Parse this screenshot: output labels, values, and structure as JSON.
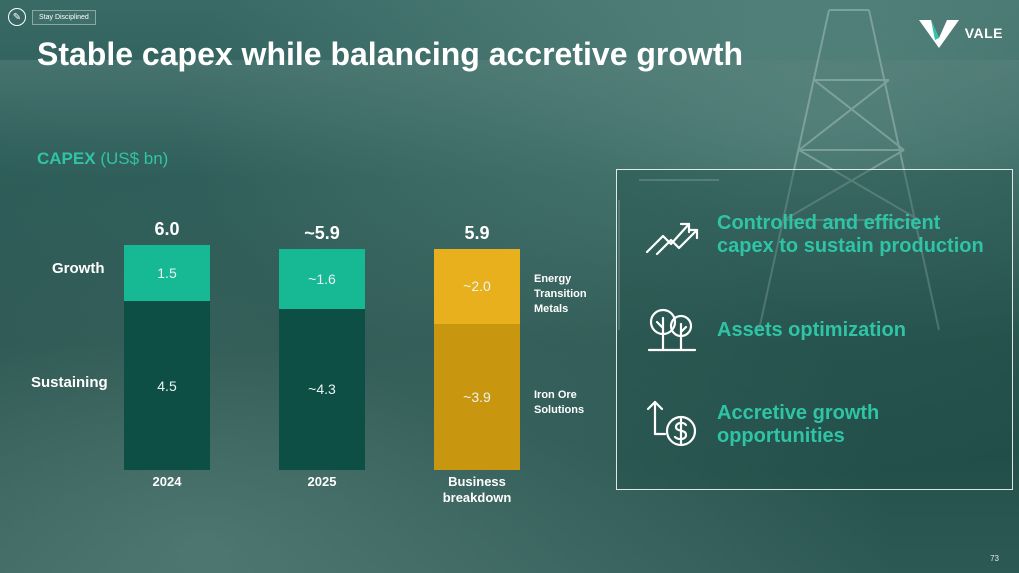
{
  "chip": {
    "label": "Stay Disciplined"
  },
  "logo": {
    "text": "VALE"
  },
  "title": "Stable capex while balancing accretive growth",
  "capex": {
    "label_strong": "CAPEX",
    "label_light": "(US$ bn)"
  },
  "row_labels": {
    "growth": "Growth",
    "sustaining": "Sustaining"
  },
  "colors": {
    "teal": "#17b894",
    "dark": "#0d4f44",
    "gold_light": "#e9b01d",
    "gold_dark": "#c9960f",
    "accent": "#2fc4a6"
  },
  "chart_data": {
    "type": "bar",
    "stacked": true,
    "title": "",
    "xlabel": "",
    "ylabel": "",
    "categories": [
      "2024",
      "2025",
      "Business breakdown"
    ],
    "totals": [
      "6.0",
      "~5.9",
      "5.9"
    ],
    "series": [
      {
        "name": "Sustaining",
        "values": [
          4.5,
          4.3,
          null
        ],
        "labels": [
          "4.5",
          "~4.3",
          ""
        ]
      },
      {
        "name": "Growth",
        "values": [
          1.5,
          1.6,
          null
        ],
        "labels": [
          "1.5",
          "~1.6",
          ""
        ]
      },
      {
        "name": "Iron Ore Solutions",
        "values": [
          null,
          null,
          3.9
        ],
        "labels": [
          "",
          "",
          "~3.9"
        ]
      },
      {
        "name": "Energy Transition Metals",
        "values": [
          null,
          null,
          2.0
        ],
        "labels": [
          "",
          "",
          "~2.0"
        ]
      }
    ],
    "x_labels": {
      "b0": "2024",
      "b1": "2025",
      "b2_line1": "Business",
      "b2_line2": "breakdown"
    },
    "side_labels": {
      "etm": [
        "Energy",
        "Transition",
        "Metals"
      ],
      "ios": [
        "Iron Ore",
        "Solutions"
      ]
    }
  },
  "panel": {
    "items": [
      {
        "icon": "trend-up-icon",
        "line1": "Controlled and efficient",
        "line2": "capex to sustain production"
      },
      {
        "icon": "trees-icon",
        "line1": "Assets optimization",
        "line2": ""
      },
      {
        "icon": "dollar-growth-icon",
        "line1": "Accretive growth",
        "line2": "opportunities"
      }
    ]
  },
  "page_number": "73"
}
